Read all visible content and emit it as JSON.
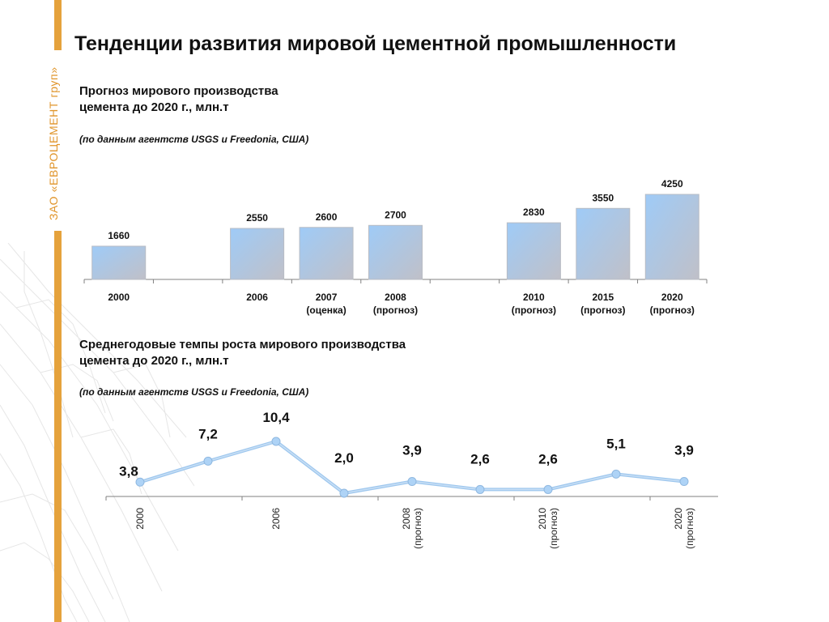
{
  "brand_text": "ЗАО «ЕВРОЦЕМЕНТ груп»",
  "title": "Тенденции развития мировой цементной промышленности",
  "colors": {
    "accent": "#e5a23c",
    "bar_top": "#9fcbf7",
    "bar_bottom": "#c0c0c8",
    "line": "#9ec7ee",
    "marker": "#aed3f6"
  },
  "chart1_heading": {
    "line1": "Прогноз мирового производства",
    "line2": "цемента до 2020 г., млн.т"
  },
  "chart1_source": "(по данным агентств USGS и Freedonia, США)",
  "chart2_heading": {
    "line1": "Среднегодовые темпы роста мирового производства",
    "line2": "цемента до 2020 г., млн.т"
  },
  "chart2_source": "(по данным агентств USGS и Freedonia, США)",
  "chart_data": [
    {
      "type": "bar",
      "categories": [
        [
          "2000"
        ],
        [
          ""
        ],
        [
          "2006"
        ],
        [
          "2007",
          "(оценка)"
        ],
        [
          "2008",
          "(прогноз)"
        ],
        [
          ""
        ],
        [
          "2010",
          "(прогноз)"
        ],
        [
          "2015",
          "(прогноз)"
        ],
        [
          "2020",
          "(прогноз)"
        ]
      ],
      "values": [
        1660,
        null,
        2550,
        2600,
        2700,
        null,
        2830,
        3550,
        4250
      ],
      "value_labels": [
        "1660",
        "",
        "2550",
        "2600",
        "2700",
        "",
        "2830",
        "3550",
        "4250"
      ],
      "ylim": [
        0,
        4250
      ]
    },
    {
      "type": "line",
      "point_count": 9,
      "values": [
        3.8,
        7.2,
        10.4,
        2.0,
        3.9,
        2.6,
        2.6,
        5.1,
        3.9
      ],
      "value_labels": [
        "3,8",
        "7,2",
        "10,4",
        "2,0",
        "3,9",
        "2,6",
        "2,6",
        "5,1",
        "3,9"
      ],
      "tick_labels": [
        [
          "2000"
        ],
        [
          ""
        ],
        [
          "2006"
        ],
        [
          ""
        ],
        [
          "2008",
          "(прогноз)"
        ],
        [
          ""
        ],
        [
          "2010",
          "(прогноз)"
        ],
        [
          ""
        ],
        [
          "2020",
          "(прогноз)"
        ]
      ]
    }
  ]
}
